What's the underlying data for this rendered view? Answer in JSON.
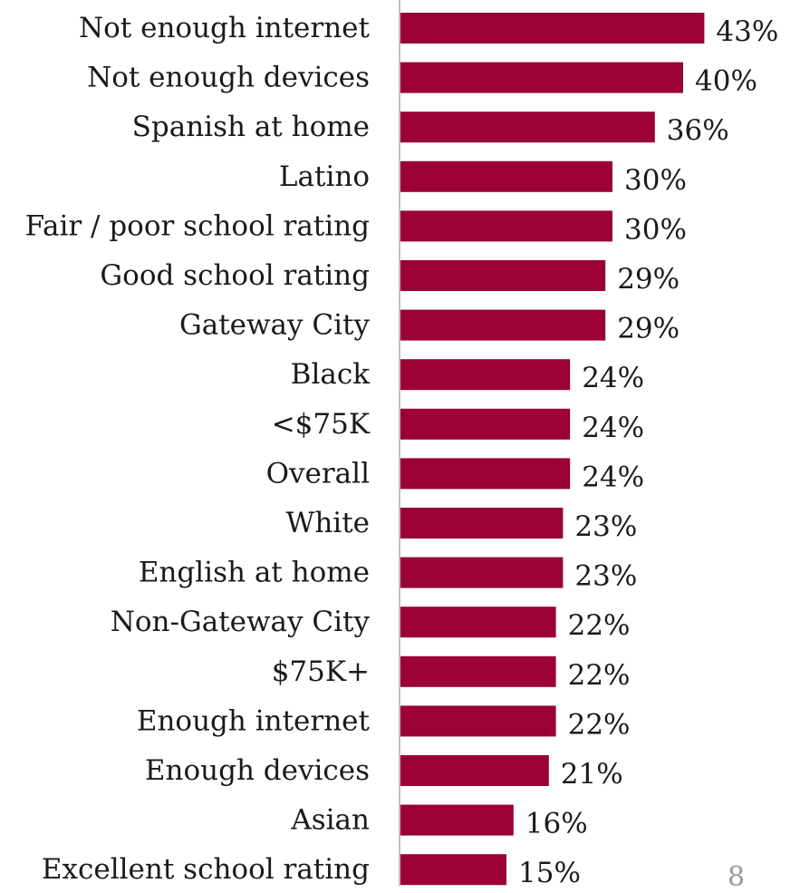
{
  "chart_data": {
    "type": "bar",
    "orientation": "horizontal",
    "title": "",
    "xlabel": "",
    "ylabel": "",
    "xlim": [
      0,
      45
    ],
    "grid": false,
    "bar_color": "#9b0037",
    "axis_color": "#bfbfbf",
    "value_format": "percent",
    "categories": [
      "Not enough internet",
      "Not enough devices",
      "Spanish at home",
      "Latino",
      "Fair / poor school rating",
      "Good school rating",
      "Gateway City",
      "Black",
      "<$75K",
      "Overall",
      "White",
      "English at home",
      "Non-Gateway City",
      "$75K+",
      "Enough internet",
      "Enough devices",
      "Asian",
      "Excellent school rating"
    ],
    "values": [
      43,
      40,
      36,
      30,
      30,
      29,
      29,
      24,
      24,
      24,
      23,
      23,
      22,
      22,
      22,
      21,
      16,
      15
    ],
    "value_labels": [
      "43%",
      "40%",
      "36%",
      "30%",
      "30%",
      "29%",
      "29%",
      "24%",
      "24%",
      "24%",
      "23%",
      "23%",
      "22%",
      "22%",
      "22%",
      "21%",
      "16%",
      "15%"
    ]
  },
  "page_number": "8"
}
